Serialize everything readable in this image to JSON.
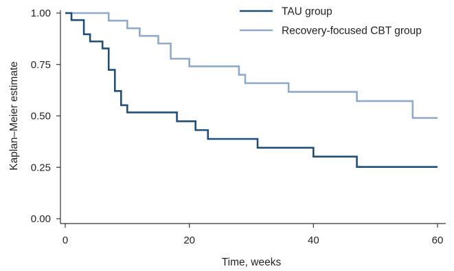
{
  "chart_data": {
    "type": "line",
    "step": true,
    "xlabel": "Time, weeks",
    "ylabel": "Kaplan–Meier estimate",
    "xlim": [
      0,
      60
    ],
    "ylim": [
      0,
      1
    ],
    "x_ticks": [
      0,
      20,
      40,
      60
    ],
    "y_ticks": [
      0.0,
      0.25,
      0.5,
      0.75,
      1.0
    ],
    "x_tick_labels": [
      "0",
      "20",
      "40",
      "60"
    ],
    "y_tick_labels": [
      "0.00",
      "0.25",
      "0.50",
      "0.75",
      "1.00"
    ],
    "grid": false,
    "legend_position": "top-right",
    "series": [
      {
        "name": "TAU group",
        "color": "#1f4e79",
        "x": [
          0,
          1,
          3,
          4,
          6,
          7,
          8,
          9,
          10,
          18,
          21,
          23,
          31,
          40,
          47,
          60
        ],
        "y": [
          1.0,
          0.966,
          0.897,
          0.862,
          0.828,
          0.724,
          0.621,
          0.552,
          0.517,
          0.474,
          0.431,
          0.388,
          0.345,
          0.302,
          0.252,
          0.252
        ]
      },
      {
        "name": "Recovery-focused CBT group",
        "color": "#8fa9cc",
        "x": [
          0,
          7,
          10,
          12,
          15,
          17,
          20,
          28,
          29,
          36,
          47,
          56,
          60
        ],
        "y": [
          1.0,
          0.963,
          0.926,
          0.889,
          0.852,
          0.778,
          0.741,
          0.7,
          0.659,
          0.617,
          0.572,
          0.49,
          0.49
        ]
      }
    ]
  }
}
